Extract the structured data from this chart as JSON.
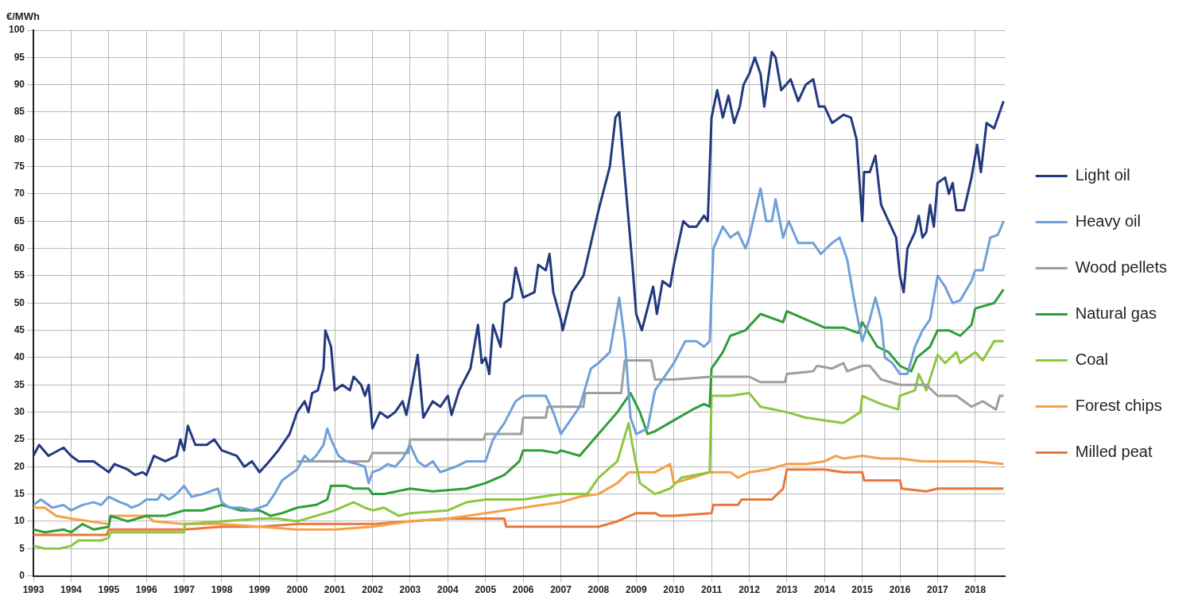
{
  "chart_data": {
    "type": "line",
    "ylabel": "€/MWh",
    "xlim": [
      1993,
      2018.8
    ],
    "xticks": [
      1993,
      1994,
      1995,
      1996,
      1997,
      1998,
      1999,
      2000,
      2001,
      2002,
      2003,
      2004,
      2005,
      2006,
      2007,
      2008,
      2009,
      2010,
      2011,
      2012,
      2013,
      2014,
      2015,
      2016,
      2017,
      2018
    ],
    "ylim": [
      0,
      100
    ],
    "yticks": [
      0,
      5,
      10,
      15,
      20,
      25,
      30,
      35,
      40,
      45,
      50,
      55,
      60,
      65,
      70,
      75,
      80,
      85,
      90,
      95,
      100
    ],
    "grid": true,
    "legend": "right",
    "marker": "none",
    "line_style": "solid",
    "series": [
      {
        "name": "Light oil",
        "color": "#22397f",
        "x": [
          1993.0,
          1993.15,
          1993.4,
          1993.8,
          1994.0,
          1994.2,
          1994.6,
          1995.0,
          1995.15,
          1995.5,
          1995.7,
          1995.9,
          1996.0,
          1996.2,
          1996.5,
          1996.8,
          1996.9,
          1997.0,
          1997.1,
          1997.3,
          1997.6,
          1997.8,
          1998.0,
          1998.4,
          1998.6,
          1998.8,
          1999.0,
          1999.2,
          1999.5,
          1999.8,
          2000.0,
          2000.2,
          2000.3,
          2000.4,
          2000.55,
          2000.7,
          2000.75,
          2000.9,
          2001.0,
          2001.2,
          2001.4,
          2001.5,
          2001.7,
          2001.8,
          2001.9,
          2002.0,
          2002.2,
          2002.4,
          2002.6,
          2002.8,
          2002.9,
          2003.0,
          2003.2,
          2003.35,
          2003.6,
          2003.8,
          2004.0,
          2004.1,
          2004.3,
          2004.6,
          2004.8,
          2004.9,
          2005.0,
          2005.1,
          2005.2,
          2005.4,
          2005.5,
          2005.7,
          2005.8,
          2006.0,
          2006.3,
          2006.4,
          2006.6,
          2006.7,
          2006.8,
          2007.0,
          2007.05,
          2007.3,
          2007.6,
          2007.8,
          2008.0,
          2008.3,
          2008.45,
          2008.55,
          2008.7,
          2008.9,
          2009.0,
          2009.15,
          2009.3,
          2009.45,
          2009.55,
          2009.7,
          2009.9,
          2010.0,
          2010.25,
          2010.4,
          2010.6,
          2010.8,
          2010.9,
          2011.0,
          2011.15,
          2011.3,
          2011.45,
          2011.6,
          2011.75,
          2011.85,
          2012.0,
          2012.15,
          2012.3,
          2012.4,
          2012.6,
          2012.7,
          2012.85,
          2013.1,
          2013.3,
          2013.5,
          2013.7,
          2013.85,
          2014.0,
          2014.2,
          2014.5,
          2014.7,
          2014.85,
          2015.0,
          2015.05,
          2015.2,
          2015.35,
          2015.5,
          2015.7,
          2015.9,
          2016.0,
          2016.1,
          2016.2,
          2016.4,
          2016.5,
          2016.6,
          2016.7,
          2016.8,
          2016.9,
          2017.0,
          2017.2,
          2017.3,
          2017.4,
          2017.5,
          2017.7,
          2017.9,
          2018.0,
          2018.05,
          2018.15,
          2018.3,
          2018.5,
          2018.75
        ],
        "values": [
          22,
          24,
          22,
          23.5,
          22,
          21,
          21,
          19,
          20.5,
          19.5,
          18.5,
          19,
          18.5,
          22,
          21,
          22,
          25,
          23,
          27.5,
          24,
          24,
          25,
          23,
          22,
          20,
          21,
          19,
          20.5,
          23,
          26,
          30,
          32,
          30,
          33.5,
          34,
          38,
          45,
          42,
          34,
          35,
          34,
          36.5,
          35,
          33,
          35,
          27,
          30,
          29,
          30,
          32,
          29.5,
          33,
          40.5,
          29,
          32,
          31,
          33,
          29.5,
          34,
          38,
          46,
          39,
          40,
          37,
          46,
          42,
          50,
          51,
          56.5,
          51,
          52,
          57,
          56,
          59,
          52,
          47,
          45,
          52,
          55,
          61,
          67,
          75,
          84,
          85,
          73,
          57,
          48,
          45,
          49,
          53,
          48,
          54,
          53,
          57,
          65,
          64,
          64,
          66,
          65,
          84,
          89,
          84,
          88,
          83,
          86,
          90,
          92,
          95,
          92,
          86,
          96,
          95,
          89,
          91,
          87,
          90,
          91,
          86,
          86,
          83,
          84.5,
          84,
          80,
          65,
          74,
          74,
          77,
          68,
          65,
          62,
          55,
          52,
          60,
          63,
          66,
          62,
          63,
          68,
          64,
          72,
          73,
          70,
          72,
          67,
          67,
          73,
          77,
          79,
          74,
          83,
          82,
          87
        ]
      },
      {
        "name": "Heavy oil",
        "color": "#6fa0d8",
        "x": [
          1993.0,
          1993.2,
          1993.5,
          1993.8,
          1994.0,
          1994.3,
          1994.6,
          1994.8,
          1995.0,
          1995.3,
          1995.5,
          1995.6,
          1995.8,
          1996.0,
          1996.3,
          1996.4,
          1996.6,
          1996.8,
          1997.0,
          1997.2,
          1997.5,
          1997.7,
          1997.9,
          1998.0,
          1998.2,
          1998.5,
          1998.8,
          1999.0,
          1999.2,
          1999.4,
          1999.6,
          2000.0,
          2000.2,
          2000.35,
          2000.5,
          2000.7,
          2000.8,
          2000.9,
          2001.1,
          2001.3,
          2001.6,
          2001.8,
          2001.9,
          2002.0,
          2002.2,
          2002.4,
          2002.6,
          2002.8,
          2003.0,
          2003.2,
          2003.4,
          2003.6,
          2003.8,
          2004.2,
          2004.5,
          2004.8,
          2005.0,
          2005.2,
          2005.5,
          2005.8,
          2006.0,
          2006.3,
          2006.6,
          2006.8,
          2007.0,
          2007.2,
          2007.5,
          2007.8,
          2008.0,
          2008.3,
          2008.55,
          2008.7,
          2008.85,
          2009.0,
          2009.3,
          2009.5,
          2009.8,
          2010.0,
          2010.3,
          2010.6,
          2010.8,
          2010.95,
          2011.05,
          2011.3,
          2011.5,
          2011.7,
          2011.9,
          2012.0,
          2012.2,
          2012.3,
          2012.45,
          2012.6,
          2012.7,
          2012.9,
          2013.05,
          2013.3,
          2013.7,
          2013.9,
          2014.2,
          2014.4,
          2014.6,
          2014.8,
          2015.0,
          2015.2,
          2015.35,
          2015.5,
          2015.6,
          2015.8,
          2016.0,
          2016.2,
          2016.4,
          2016.6,
          2016.8,
          2017.0,
          2017.2,
          2017.4,
          2017.6,
          2017.9,
          2018.0,
          2018.2,
          2018.4,
          2018.6,
          2018.75
        ],
        "values": [
          13,
          14,
          12.5,
          13,
          12,
          13,
          13.5,
          13,
          14.5,
          13.5,
          13,
          12.5,
          13,
          14,
          14,
          15,
          14,
          15,
          16.5,
          14.5,
          15,
          15.5,
          16,
          13.5,
          12.5,
          12.5,
          12,
          12.5,
          13,
          15,
          17.5,
          19.5,
          22,
          21,
          22,
          24,
          27,
          25,
          22,
          21,
          20.5,
          20,
          17,
          19,
          19.5,
          20.5,
          20,
          21.5,
          24,
          21,
          20,
          21,
          19,
          20,
          21,
          21,
          21,
          25,
          28,
          32,
          33,
          33,
          33,
          30,
          26,
          28,
          31,
          38,
          39,
          41,
          51,
          43,
          29,
          26,
          27,
          34,
          37,
          39,
          43,
          43,
          42,
          43,
          60,
          64,
          62,
          63,
          60,
          62,
          68,
          71,
          65,
          65,
          69,
          62,
          65,
          61,
          61,
          59,
          61,
          62,
          58,
          50,
          43,
          47,
          51,
          47,
          40,
          39,
          37,
          37,
          42,
          45,
          47,
          55,
          53,
          50,
          50.5,
          54,
          56,
          56,
          62,
          62.5,
          65
        ]
      },
      {
        "name": "Wood pellets",
        "color": "#9e9e9e",
        "x": [
          2000.0,
          2001.9,
          2002.0,
          2002.95,
          2003.0,
          2004.95,
          2005.0,
          2005.95,
          2006.0,
          2006.6,
          2006.65,
          2007.6,
          2007.65,
          2008.6,
          2008.7,
          2009.4,
          2009.5,
          2010.0,
          2011.0,
          2012.0,
          2012.3,
          2012.95,
          2013.0,
          2013.7,
          2013.8,
          2014.2,
          2014.5,
          2014.6,
          2015.0,
          2015.2,
          2015.5,
          2016.0,
          2016.7,
          2017.0,
          2017.5,
          2017.9,
          2018.2,
          2018.55,
          2018.65,
          2018.75
        ],
        "values": [
          21,
          21,
          22.5,
          22.5,
          25,
          25,
          26,
          26,
          29,
          29,
          31,
          31,
          33.5,
          33.5,
          39.5,
          39.5,
          36,
          36,
          36.5,
          36.5,
          35.5,
          35.5,
          37,
          37.5,
          38.5,
          38,
          39,
          37.5,
          38.5,
          38.5,
          36,
          35,
          35,
          33,
          33,
          31,
          32,
          30.5,
          33,
          33
        ]
      },
      {
        "name": "Natural gas",
        "color": "#2e9e3a",
        "x": [
          1993.0,
          1993.3,
          1993.8,
          1994.0,
          1994.3,
          1994.6,
          1995.0,
          1995.05,
          1995.5,
          1996.0,
          1996.5,
          1997.0,
          1997.5,
          1998.0,
          1998.5,
          1999.0,
          1999.3,
          1999.6,
          2000.0,
          2000.5,
          2000.8,
          2000.9,
          2001.3,
          2001.5,
          2001.9,
          2002.0,
          2002.3,
          2003.0,
          2003.6,
          2004.5,
          2005.0,
          2005.5,
          2005.9,
          2006.0,
          2006.5,
          2006.9,
          2007.0,
          2007.5,
          2008.0,
          2008.5,
          2008.85,
          2009.1,
          2009.3,
          2009.5,
          2010.0,
          2010.5,
          2010.8,
          2010.95,
          2011.0,
          2011.3,
          2011.5,
          2011.9,
          2012.3,
          2012.9,
          2013.0,
          2013.5,
          2014.0,
          2014.5,
          2014.9,
          2015.0,
          2015.4,
          2015.7,
          2016.0,
          2016.3,
          2016.45,
          2016.8,
          2017.0,
          2017.3,
          2017.6,
          2017.9,
          2018.0,
          2018.5,
          2018.75
        ],
        "values": [
          8.5,
          8,
          8.5,
          8,
          9.5,
          8.5,
          9,
          11,
          10,
          11,
          11,
          12,
          12,
          13,
          12,
          12,
          11,
          11.5,
          12.5,
          13,
          14,
          16.5,
          16.5,
          16,
          16,
          15,
          15,
          16,
          15.5,
          16,
          17,
          18.5,
          21,
          23,
          23,
          22.5,
          23,
          22,
          26,
          30,
          33.5,
          30,
          26,
          26.5,
          28.5,
          30.5,
          31.5,
          31,
          38,
          41,
          44,
          45,
          48,
          46.5,
          48.5,
          47,
          45.5,
          45.5,
          44.5,
          46.5,
          42,
          41,
          38.5,
          37.5,
          40,
          42,
          45,
          45,
          44,
          46,
          49,
          50,
          52.5
        ]
      },
      {
        "name": "Coal",
        "color": "#8dc63f",
        "x": [
          1993.0,
          1993.3,
          1993.7,
          1994.0,
          1994.2,
          1994.8,
          1995.0,
          1995.05,
          1996.0,
          1997.0,
          1997.02,
          1998.0,
          1999.0,
          1999.5,
          2000.0,
          2000.5,
          2001.0,
          2001.5,
          2001.8,
          2002.0,
          2002.3,
          2002.7,
          2003.0,
          2004.0,
          2004.5,
          2005.0,
          2006.0,
          2006.5,
          2007.0,
          2007.7,
          2008.0,
          2008.5,
          2008.8,
          2008.9,
          2009.1,
          2009.5,
          2009.9,
          2010.2,
          2010.95,
          2011.0,
          2011.5,
          2012.0,
          2012.3,
          2013.0,
          2013.5,
          2014.0,
          2014.5,
          2014.95,
          2015.0,
          2015.5,
          2015.95,
          2016.0,
          2016.4,
          2016.5,
          2016.7,
          2017.0,
          2017.2,
          2017.5,
          2017.6,
          2018.0,
          2018.2,
          2018.5,
          2018.75
        ],
        "values": [
          5.5,
          5,
          5,
          5.5,
          6.5,
          6.5,
          7,
          8,
          8,
          8,
          9.5,
          10,
          10.5,
          10.5,
          10,
          11,
          12,
          13.5,
          12.5,
          12,
          12.5,
          11,
          11.5,
          12,
          13.5,
          14,
          14,
          14.5,
          15,
          15,
          18,
          21,
          28,
          24,
          17,
          15,
          16,
          18,
          19,
          33,
          33,
          33.5,
          31,
          30,
          29,
          28.5,
          28,
          30,
          33,
          31.5,
          30.5,
          33,
          34,
          37,
          34,
          40.5,
          39,
          41,
          39,
          41,
          39.5,
          43,
          43
        ]
      },
      {
        "name": "Forest chips",
        "color": "#f5a04a",
        "x": [
          1993.0,
          1993.3,
          1993.6,
          1994.0,
          1994.5,
          1995.0,
          1995.05,
          1996.0,
          1996.2,
          1997.0,
          1998.0,
          1999.0,
          2000.0,
          2001.0,
          2002.0,
          2003.0,
          2004.0,
          2005.0,
          2006.0,
          2007.0,
          2007.5,
          2008.0,
          2008.5,
          2008.8,
          2009.5,
          2009.9,
          2010.0,
          2010.5,
          2010.95,
          2011.5,
          2011.7,
          2012.0,
          2012.5,
          2013.0,
          2013.5,
          2014.0,
          2014.3,
          2014.5,
          2015.0,
          2015.5,
          2016.0,
          2016.6,
          2017.0,
          2018.0,
          2018.75
        ],
        "values": [
          12.5,
          12.5,
          11,
          10.5,
          10,
          9.5,
          11,
          11,
          10,
          9.5,
          9.5,
          9,
          8.5,
          8.5,
          9,
          10,
          10.5,
          11.5,
          12.5,
          13.5,
          14.5,
          15,
          17,
          19,
          19,
          20.5,
          17,
          18,
          19,
          19,
          18,
          19,
          19.5,
          20.5,
          20.5,
          21,
          22,
          21.5,
          22,
          21.5,
          21.5,
          21,
          21,
          21,
          20.5
        ]
      },
      {
        "name": "Milled peat",
        "color": "#e8773a",
        "x": [
          1993.0,
          1994.0,
          1994.95,
          1995.0,
          1996.0,
          1997.0,
          1998.0,
          1999.0,
          2000.0,
          2001.0,
          2002.0,
          2003.0,
          2004.0,
          2005.0,
          2005.5,
          2005.55,
          2006.0,
          2007.0,
          2008.0,
          2008.5,
          2009.0,
          2009.5,
          2009.65,
          2010.0,
          2011.0,
          2011.05,
          2011.7,
          2011.8,
          2012.6,
          2012.9,
          2013.0,
          2014.0,
          2014.5,
          2015.0,
          2015.05,
          2016.0,
          2016.05,
          2016.7,
          2017.0,
          2018.0,
          2018.75
        ],
        "values": [
          7.5,
          7.5,
          7.5,
          8.5,
          8.5,
          8.5,
          9,
          9,
          9.5,
          9.5,
          9.5,
          10,
          10.5,
          10.5,
          10.5,
          9,
          9,
          9,
          9,
          10,
          11.5,
          11.5,
          11,
          11,
          11.5,
          13,
          13,
          14,
          14,
          16,
          19.5,
          19.5,
          19,
          19,
          17.5,
          17.5,
          16,
          15.5,
          16,
          16,
          16
        ]
      }
    ]
  }
}
